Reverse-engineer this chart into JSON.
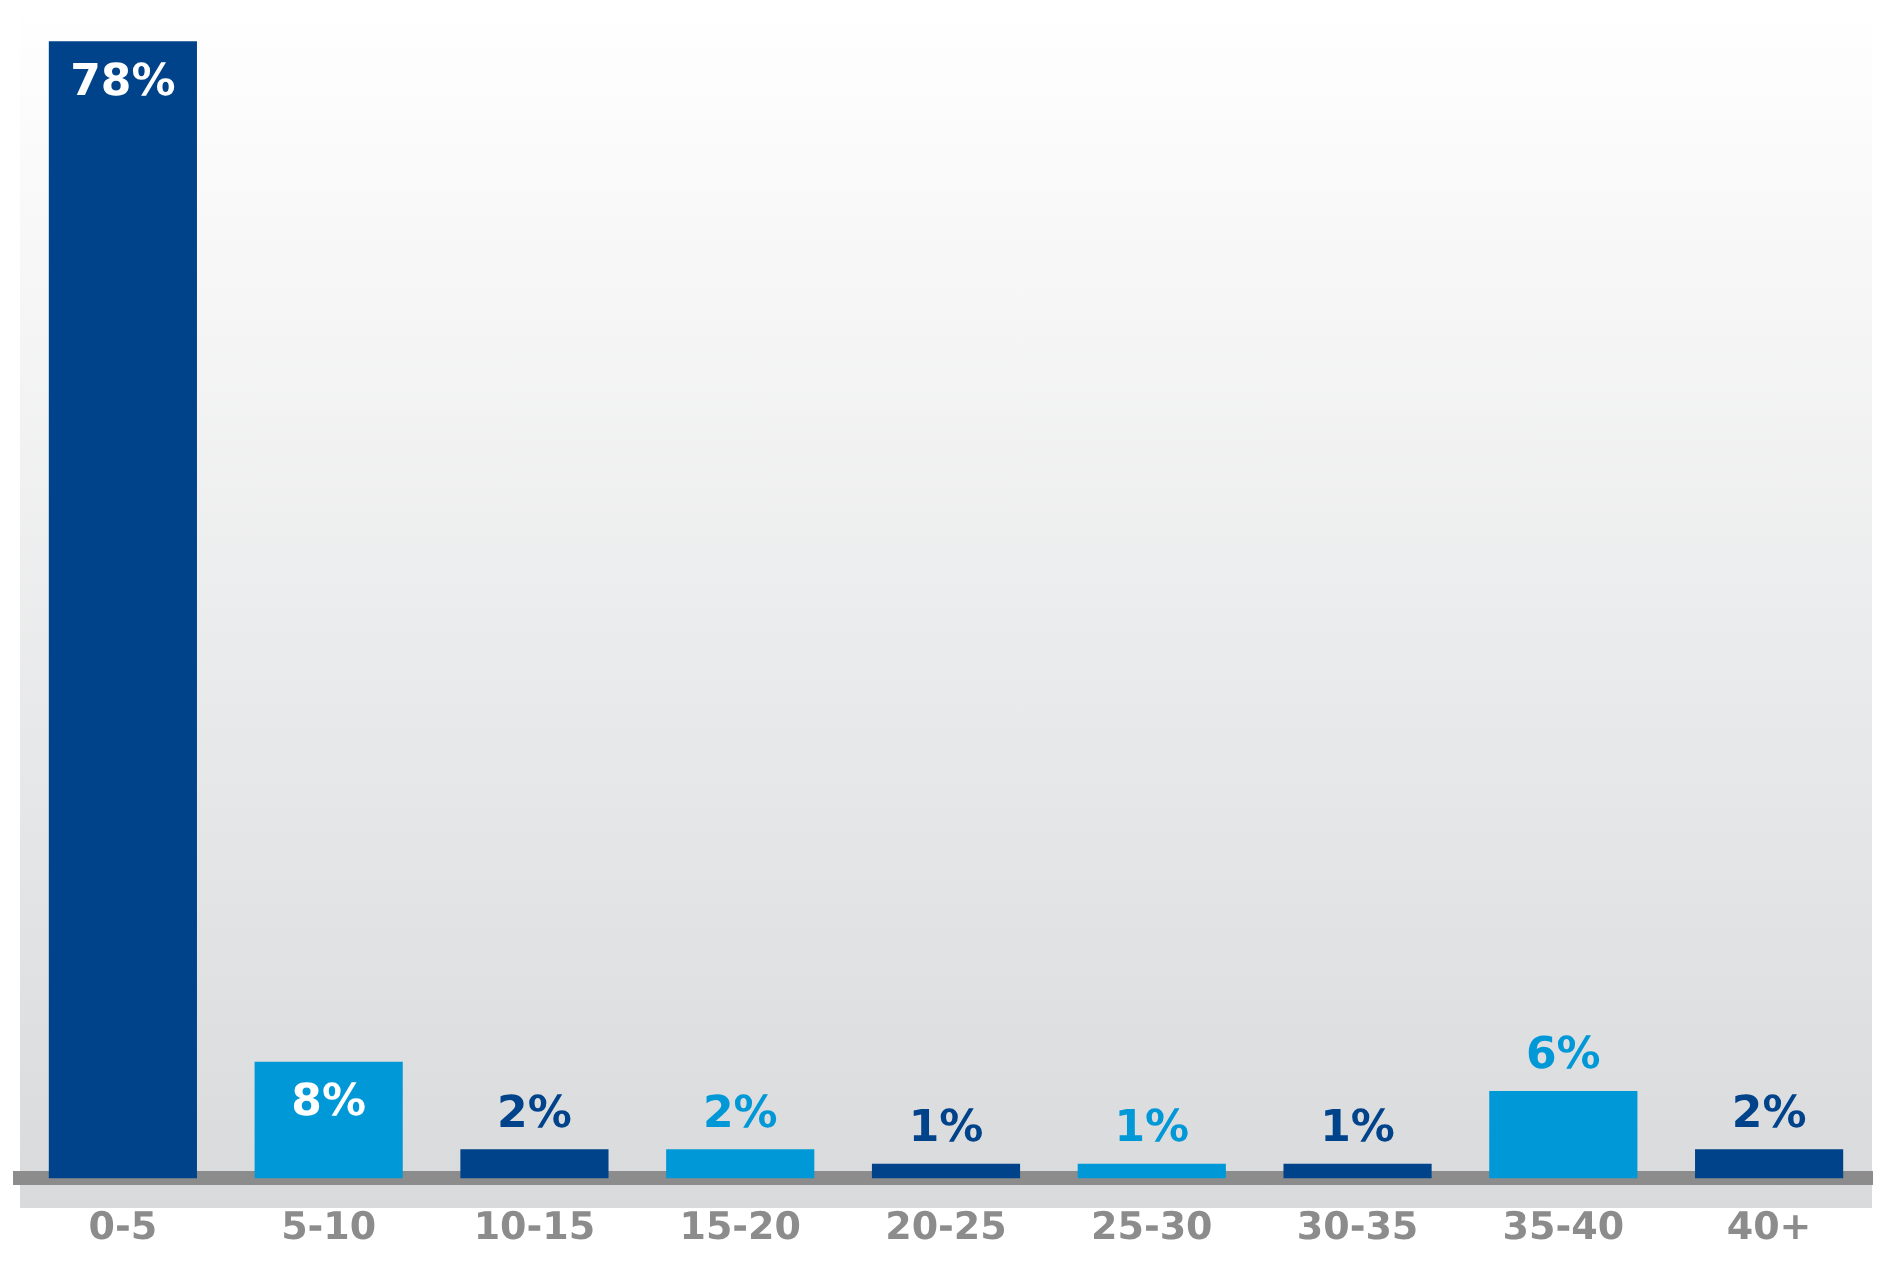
{
  "chart_data": {
    "type": "bar",
    "categories": [
      "0-5",
      "5-10",
      "10-15",
      "15-20",
      "20-25",
      "25-30",
      "30-35",
      "35-40",
      "40+"
    ],
    "values": [
      78,
      8,
      2,
      2,
      1,
      1,
      1,
      6,
      2
    ],
    "colors": [
      "#00438a",
      "#0098d6",
      "#00438a",
      "#0098d6",
      "#00438a",
      "#0098d6",
      "#00438a",
      "#0098d6",
      "#00438a"
    ],
    "value_labels": [
      "78%",
      "8%",
      "2%",
      "2%",
      "1%",
      "1%",
      "1%",
      "6%",
      "2%"
    ],
    "grid": false,
    "legend": false
  }
}
